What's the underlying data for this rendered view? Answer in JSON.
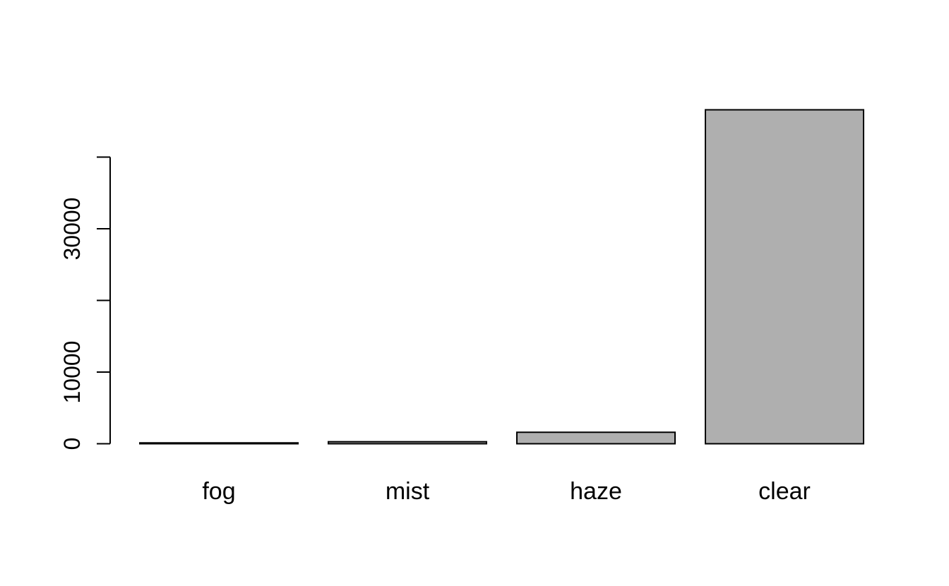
{
  "figure": {
    "background": "#FFFFFF",
    "description": "bar chart of weather condition counts"
  },
  "chart_data": {
    "type": "bar",
    "categories": [
      "fog",
      "mist",
      "haze",
      "clear"
    ],
    "values": [
      120,
      280,
      1600,
      46600
    ],
    "title": "",
    "xlabel": "",
    "ylabel": "",
    "ylim": [
      0,
      47000
    ],
    "yticks": [
      0,
      10000,
      20000,
      30000,
      40000
    ],
    "ytick_labels": [
      "0",
      "10000",
      "",
      "30000",
      ""
    ],
    "grid": false,
    "legend": "none",
    "bar_fill": "#AFAFAF",
    "bar_border": "#000000",
    "axis_color": "#000000",
    "text_color": "#000000"
  }
}
